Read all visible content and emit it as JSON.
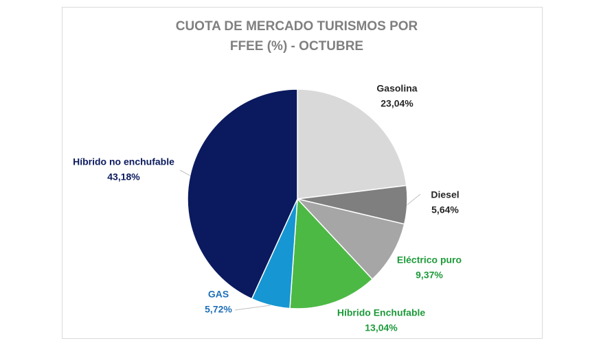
{
  "chart_data": {
    "type": "pie",
    "title": "CUOTA DE MERCADO TURISMOS POR FFEE (%) - OCTUBRE",
    "categories": [
      "Gasolina",
      "Diesel",
      "Eléctrico puro",
      "Híbrido Enchufable",
      "GAS",
      "Híbrido no enchufable"
    ],
    "values": [
      23.04,
      5.64,
      9.37,
      13.04,
      5.72,
      43.18
    ],
    "value_labels": [
      "23,04%",
      "5,64%",
      "9,37%",
      "13,04%",
      "5,72%",
      "43,18%"
    ],
    "colors": [
      "#d9d9d9",
      "#7f7f7f",
      "#a6a6a6",
      "#4cb944",
      "#1696d2",
      "#0b1a5e"
    ],
    "label_colors": [
      "#262626",
      "#262626",
      "#1e9a3a",
      "#1e9a3a",
      "#1f6fb8",
      "#0b1a5e"
    ]
  }
}
